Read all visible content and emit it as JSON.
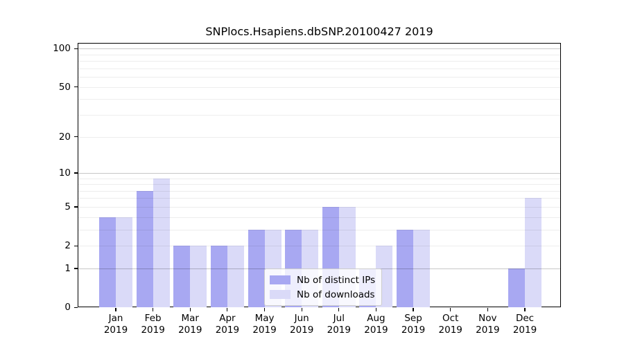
{
  "chart_data": {
    "type": "bar",
    "title": "SNPlocs.Hsapiens.dbSNP.20100427 2019",
    "categories": [
      "Jan",
      "Feb",
      "Mar",
      "Apr",
      "May",
      "Jun",
      "Jul",
      "Aug",
      "Sep",
      "Oct",
      "Nov",
      "Dec"
    ],
    "category_year": "2019",
    "series": [
      {
        "name": "Nb of distinct IPs",
        "color": "#a8a8f2",
        "values": [
          4,
          7,
          2,
          2,
          3,
          3,
          5,
          1,
          3,
          0,
          0,
          1
        ]
      },
      {
        "name": "Nb of downloads",
        "color": "#dadaf8",
        "values": [
          4,
          9,
          2,
          2,
          3,
          3,
          5,
          2,
          3,
          0,
          0,
          6
        ]
      }
    ],
    "yscale": "log1p",
    "ylim": [
      0,
      111
    ],
    "yticks": [
      0,
      1,
      2,
      5,
      10,
      20,
      50,
      100
    ],
    "grid": {
      "minor": [
        2,
        3,
        4,
        5,
        6,
        7,
        8,
        9,
        20,
        30,
        40,
        50,
        60,
        70,
        80,
        90
      ],
      "major": [
        1,
        10,
        100
      ]
    },
    "legend_position": "lower center",
    "xlabel": "",
    "ylabel": ""
  }
}
